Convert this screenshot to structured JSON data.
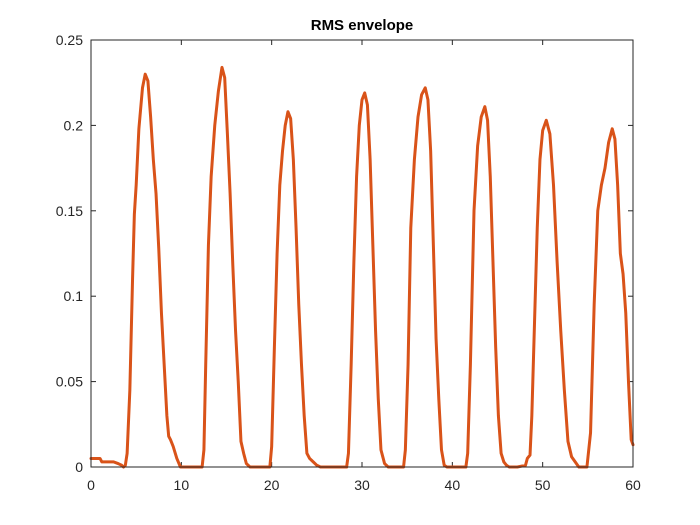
{
  "chart_data": {
    "type": "line",
    "title": "RMS envelope",
    "xlabel": "",
    "ylabel": "",
    "xlim": [
      0,
      60
    ],
    "ylim": [
      0,
      0.25
    ],
    "xticks": [
      0,
      10,
      20,
      30,
      40,
      50,
      60
    ],
    "yticks": [
      0,
      0.05,
      0.1,
      0.15,
      0.2,
      0.25
    ],
    "xtick_labels": [
      "0",
      "10",
      "20",
      "30",
      "40",
      "50",
      "60"
    ],
    "ytick_labels": [
      "0",
      "0.05",
      "0.1",
      "0.15",
      "0.2",
      "0.25"
    ],
    "grid": false,
    "legend": "none",
    "line_color": "#D95319",
    "series": [
      {
        "x": [
          0,
          0.9,
          1.0,
          1.1,
          1.2,
          2.5,
          3.0,
          3.4,
          3.6,
          3.8,
          4.0,
          4.3,
          4.6,
          4.8,
          5.0,
          5.3,
          5.7,
          6.0,
          6.3,
          6.6,
          6.9,
          7.2,
          7.5,
          7.8,
          8.1,
          8.4,
          8.6,
          8.8,
          9.1,
          9.5,
          9.9,
          10.3,
          10.6,
          12.3,
          12.5,
          12.7,
          13.0,
          13.3,
          13.7,
          14.1,
          14.5,
          14.8,
          15.1,
          15.4,
          15.7,
          16.0,
          16.3,
          16.6,
          16.9,
          17.2,
          17.6,
          17.9,
          18.3,
          19.8,
          20.0,
          20.3,
          20.6,
          20.9,
          21.2,
          21.5,
          21.8,
          22.1,
          22.4,
          22.7,
          23.0,
          23.3,
          23.6,
          23.9,
          24.2,
          24.6,
          25.0,
          25.4,
          25.8,
          26.2,
          26.5,
          28.3,
          28.5,
          28.8,
          29.1,
          29.4,
          29.7,
          30.0,
          30.3,
          30.6,
          30.9,
          31.2,
          31.5,
          31.8,
          32.1,
          32.5,
          32.9,
          33.2,
          33.5,
          34.6,
          34.8,
          35.1,
          35.4,
          35.8,
          36.2,
          36.6,
          37.0,
          37.3,
          37.6,
          37.9,
          38.2,
          38.5,
          38.8,
          39.1,
          39.4,
          39.7,
          40.0,
          40.3,
          40.6,
          41.5,
          41.7,
          42.0,
          42.4,
          42.8,
          43.2,
          43.6,
          43.9,
          44.2,
          44.5,
          44.8,
          45.1,
          45.4,
          45.7,
          46.0,
          46.3,
          46.6,
          46.9,
          47.2,
          48.1,
          48.3,
          48.6,
          48.8,
          49.1,
          49.4,
          49.7,
          50.0,
          50.4,
          50.8,
          51.2,
          51.6,
          52.0,
          52.4,
          52.8,
          53.2,
          53.6,
          54.0,
          54.3,
          54.6,
          54.9,
          55.3,
          55.7,
          56.1,
          56.5,
          56.9,
          57.3,
          57.7,
          58.0,
          58.3,
          58.6,
          58.9,
          59.2,
          59.5,
          59.8,
          60.0
        ],
        "y": [
          0.005,
          0.005,
          0.005,
          0.004,
          0.003,
          0.003,
          0.002,
          0.001,
          0.0,
          0.001,
          0.008,
          0.045,
          0.11,
          0.148,
          0.165,
          0.198,
          0.222,
          0.23,
          0.226,
          0.205,
          0.18,
          0.16,
          0.128,
          0.09,
          0.06,
          0.03,
          0.018,
          0.016,
          0.012,
          0.005,
          0.0,
          0.0,
          0.0,
          0.0,
          0.01,
          0.06,
          0.13,
          0.17,
          0.2,
          0.22,
          0.234,
          0.228,
          0.195,
          0.16,
          0.118,
          0.08,
          0.05,
          0.015,
          0.008,
          0.002,
          0.0,
          0.0,
          0.0,
          0.0,
          0.012,
          0.07,
          0.125,
          0.165,
          0.185,
          0.2,
          0.208,
          0.204,
          0.18,
          0.14,
          0.095,
          0.06,
          0.03,
          0.008,
          0.005,
          0.003,
          0.001,
          0.0,
          0.0,
          0.0,
          0.0,
          0.0,
          0.008,
          0.06,
          0.12,
          0.17,
          0.2,
          0.215,
          0.219,
          0.212,
          0.18,
          0.13,
          0.08,
          0.04,
          0.01,
          0.002,
          0.0,
          0.0,
          0.0,
          0.0,
          0.01,
          0.06,
          0.14,
          0.18,
          0.205,
          0.218,
          0.222,
          0.215,
          0.185,
          0.13,
          0.075,
          0.04,
          0.01,
          0.001,
          0.0,
          0.0,
          0.0,
          0.0,
          0.0,
          0.0,
          0.008,
          0.06,
          0.15,
          0.188,
          0.205,
          0.211,
          0.203,
          0.17,
          0.12,
          0.07,
          0.03,
          0.008,
          0.003,
          0.001,
          0.0,
          0.0,
          0.0,
          0.0,
          0.001,
          0.005,
          0.007,
          0.03,
          0.085,
          0.14,
          0.18,
          0.197,
          0.203,
          0.195,
          0.165,
          0.12,
          0.08,
          0.045,
          0.015,
          0.006,
          0.003,
          0.0,
          0.0,
          0.0,
          0.0,
          0.02,
          0.095,
          0.15,
          0.165,
          0.175,
          0.19,
          0.198,
          0.192,
          0.165,
          0.125,
          0.113,
          0.09,
          0.05,
          0.016,
          0.013
        ]
      }
    ]
  }
}
